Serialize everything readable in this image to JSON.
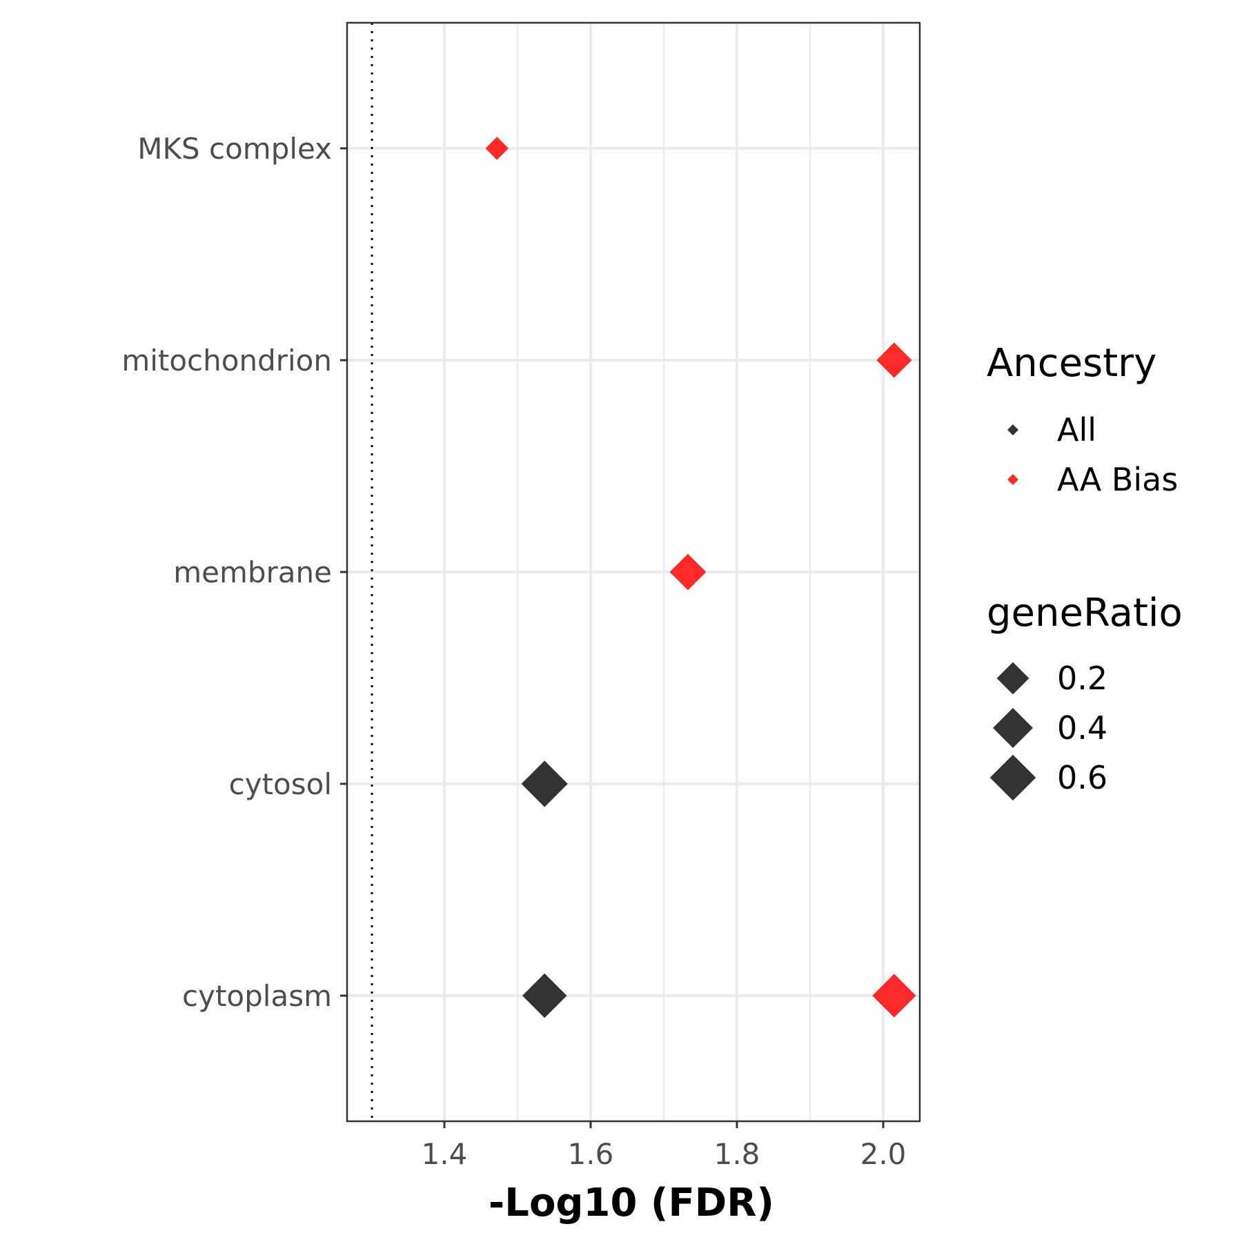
{
  "chart_data": {
    "type": "scatter",
    "title": "",
    "xlabel": "-Log10 (FDR)",
    "ylabel": "",
    "xlim": [
      1.267,
      2.05
    ],
    "x_ticks": [
      1.4,
      1.6,
      1.8,
      2.0
    ],
    "x_tick_labels": [
      "1.4",
      "1.6",
      "1.8",
      "2.0"
    ],
    "x_minor_grid": [
      1.5,
      1.7,
      1.9
    ],
    "categories": [
      "MKS complex",
      "mitochondrion",
      "membrane",
      "cytosol",
      "cytoplasm"
    ],
    "reference_line": {
      "x": 1.301,
      "style": "dotted"
    },
    "grid": true,
    "series": [
      {
        "name": "All",
        "color": "#333333",
        "points": [
          {
            "category": "cytosol",
            "x": 1.537,
            "geneRatio": 0.62
          },
          {
            "category": "cytoplasm",
            "x": 1.537,
            "geneRatio": 0.55
          }
        ]
      },
      {
        "name": "AA Bias",
        "color": "#ff2a2a",
        "points": [
          {
            "category": "MKS complex",
            "x": 1.472,
            "geneRatio": 0.05
          },
          {
            "category": "mitochondrion",
            "x": 2.015,
            "geneRatio": 0.27
          },
          {
            "category": "membrane",
            "x": 1.733,
            "geneRatio": 0.3
          },
          {
            "category": "cytoplasm",
            "x": 2.015,
            "geneRatio": 0.52
          }
        ]
      }
    ],
    "legend": {
      "placement": "right",
      "color_title": "Ancestry",
      "color_entries": [
        {
          "label": "All",
          "color": "#333333"
        },
        {
          "label": "AA Bias",
          "color": "#ff2a2a"
        }
      ],
      "size_title": "geneRatio",
      "size_entries": [
        {
          "label": "0.2",
          "value": 0.2
        },
        {
          "label": "0.4",
          "value": 0.4
        },
        {
          "label": "0.6",
          "value": 0.6
        }
      ]
    }
  }
}
